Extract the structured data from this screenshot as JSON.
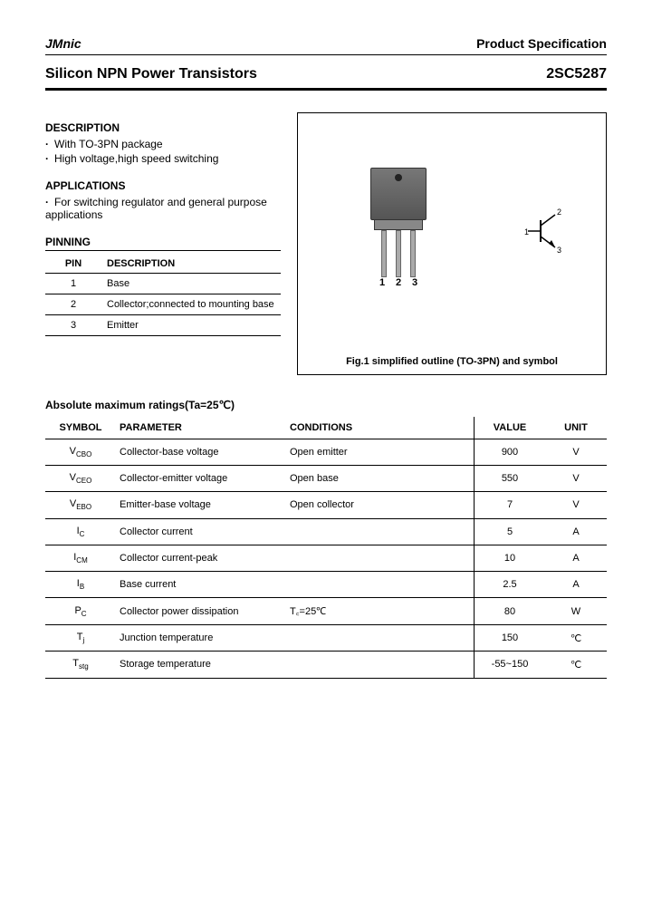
{
  "header": {
    "brand": "JMnic",
    "spec": "Product Specification"
  },
  "title": {
    "left": "Silicon NPN Power Transistors",
    "right": "2SC5287"
  },
  "description": {
    "heading": "DESCRIPTION",
    "items": [
      "With TO-3PN package",
      "High voltage,high speed switching"
    ]
  },
  "applications": {
    "heading": "APPLICATIONS",
    "items": [
      "For switching regulator and general purpose applications"
    ]
  },
  "pinning": {
    "heading": "PINNING",
    "columns": [
      "PIN",
      "DESCRIPTION"
    ],
    "rows": [
      {
        "pin": "1",
        "desc": "Base"
      },
      {
        "pin": "2",
        "desc": "Collector;connected to mounting base"
      },
      {
        "pin": "3",
        "desc": "Emitter"
      }
    ]
  },
  "figure": {
    "lead_labels": [
      "1",
      "2",
      "3"
    ],
    "symbol_labels": {
      "pin1": "1",
      "pin2": "2",
      "pin3": "3"
    },
    "caption": "Fig.1 simplified outline (TO-3PN) and symbol"
  },
  "ratings": {
    "heading": "Absolute maximum ratings(Ta=25℃)",
    "columns": [
      "SYMBOL",
      "PARAMETER",
      "CONDITIONS",
      "VALUE",
      "UNIT"
    ],
    "rows": [
      {
        "sym": "V",
        "sub": "CBO",
        "param": "Collector-base voltage",
        "cond": "Open emitter",
        "val": "900",
        "unit": "V"
      },
      {
        "sym": "V",
        "sub": "CEO",
        "param": "Collector-emitter voltage",
        "cond": "Open base",
        "val": "550",
        "unit": "V"
      },
      {
        "sym": "V",
        "sub": "EBO",
        "param": "Emitter-base voltage",
        "cond": "Open collector",
        "val": "7",
        "unit": "V"
      },
      {
        "sym": "I",
        "sub": "C",
        "param": "Collector current",
        "cond": "",
        "val": "5",
        "unit": "A"
      },
      {
        "sym": "I",
        "sub": "CM",
        "param": "Collector current-peak",
        "cond": "",
        "val": "10",
        "unit": "A"
      },
      {
        "sym": "I",
        "sub": "B",
        "param": "Base current",
        "cond": "",
        "val": "2.5",
        "unit": "A"
      },
      {
        "sym": "P",
        "sub": "C",
        "param": "Collector power dissipation",
        "cond": "T꜀=25℃",
        "val": "80",
        "unit": "W"
      },
      {
        "sym": "T",
        "sub": "j",
        "param": "Junction temperature",
        "cond": "",
        "val": "150",
        "unit": "℃"
      },
      {
        "sym": "T",
        "sub": "stg",
        "param": "Storage temperature",
        "cond": "",
        "val": "-55~150",
        "unit": "℃"
      }
    ]
  }
}
